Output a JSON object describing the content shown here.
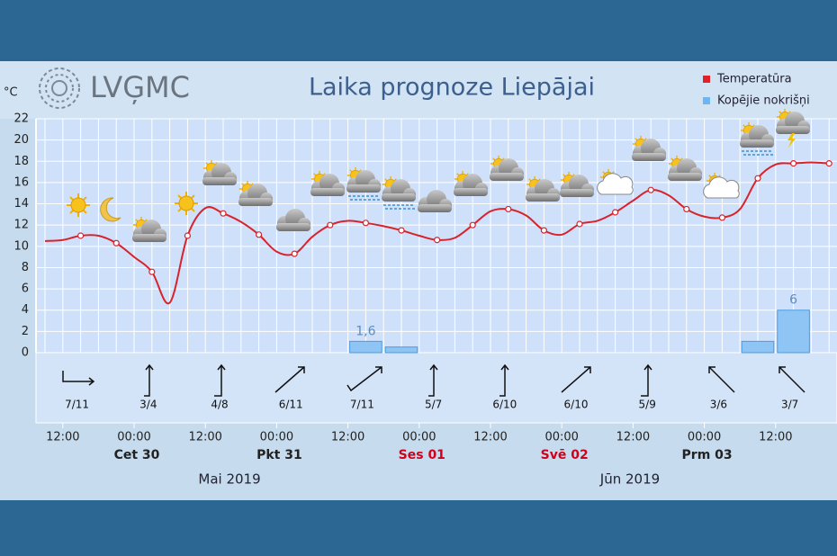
{
  "logo": "LVĢMC",
  "chart_data": {
    "type": "line",
    "title": "Laika prognoze Liepājai",
    "y_label": "°C",
    "categories": [
      null,
      "12:00",
      null,
      null,
      null,
      "00:00",
      null,
      null,
      null,
      "12:00",
      null,
      null,
      null,
      "00:00",
      null,
      null,
      null,
      "12:00",
      null,
      null,
      null,
      "00:00",
      null,
      null,
      null,
      "12:00",
      null,
      null,
      null,
      "00:00",
      null,
      null,
      null,
      "12:00",
      null,
      null,
      null,
      "00:00",
      null,
      null,
      null,
      "12:00",
      null,
      null,
      null
    ],
    "ylim": [
      0,
      22
    ],
    "yticks": [
      0,
      2,
      4,
      6,
      8,
      10,
      12,
      14,
      16,
      18,
      20,
      22
    ],
    "y2lim": [
      0,
      33
    ],
    "grid": true,
    "series": [
      {
        "name": "Temperatūra",
        "color": "#d9232a",
        "values": [
          10.5,
          10.6,
          11.0,
          11.0,
          10.3,
          9.0,
          7.6,
          4.7,
          11.0,
          13.6,
          13.1,
          12.3,
          11.1,
          9.5,
          9.3,
          10.9,
          12.0,
          12.4,
          12.2,
          11.9,
          11.5,
          11.0,
          10.6,
          10.8,
          12.0,
          13.3,
          13.5,
          12.9,
          11.5,
          11.1,
          12.1,
          12.4,
          13.2,
          14.3,
          15.3,
          14.8,
          13.5,
          12.8,
          12.7,
          13.5,
          16.4,
          17.7,
          17.8,
          17.9,
          17.8
        ]
      },
      {
        "name": "Kopējie nokrišņi",
        "color": "#8ec5f5",
        "type": "bar",
        "axis": "y2",
        "values": [
          null,
          null,
          null,
          null,
          null,
          null,
          null,
          null,
          null,
          null,
          null,
          null,
          null,
          null,
          null,
          null,
          null,
          1.6,
          null,
          0.8,
          null,
          null,
          null,
          null,
          null,
          null,
          null,
          null,
          null,
          null,
          null,
          null,
          null,
          null,
          null,
          null,
          null,
          null,
          null,
          1.6,
          null,
          6,
          null,
          null,
          null
        ],
        "value_labels": [
          null,
          null,
          null,
          null,
          null,
          null,
          null,
          null,
          null,
          null,
          null,
          null,
          null,
          null,
          null,
          null,
          null,
          "1,6",
          null,
          null,
          null,
          null,
          null,
          null,
          null,
          null,
          null,
          null,
          null,
          null,
          null,
          null,
          null,
          null,
          null,
          null,
          null,
          null,
          null,
          null,
          null,
          "6",
          null,
          null,
          null
        ]
      }
    ],
    "wind": [
      "7/11",
      "3/4",
      "4/8",
      "6/11",
      "7/11",
      "5/7",
      "6/10",
      "6/10",
      "5/9",
      "3/6",
      "3/7"
    ],
    "days": [
      {
        "label": "Cet 30",
        "color": "#222222"
      },
      {
        "label": "Pkt 31",
        "color": "#222222"
      },
      {
        "label": "Ses 01",
        "color": "#d0021b"
      },
      {
        "label": "Svē 02",
        "color": "#d0021b"
      },
      {
        "label": "Prm 03",
        "color": "#222222"
      }
    ],
    "months": [
      "Mai 2019",
      "Jūn 2019"
    ]
  }
}
